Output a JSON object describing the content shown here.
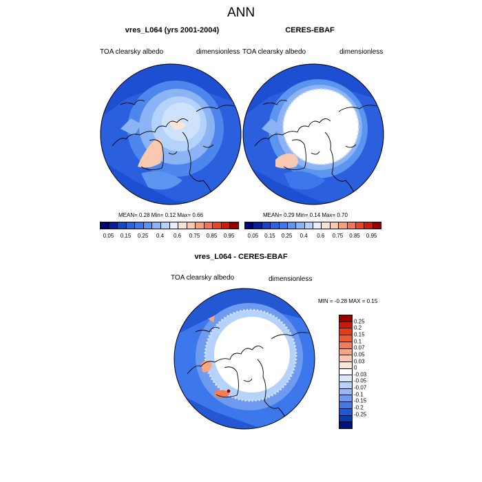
{
  "main_title": "ANN",
  "panel1": {
    "title": "vres_L064 (yrs 2001-2004)",
    "left_label": "TOA clearsky albedo",
    "right_label": "dimensionless",
    "stats": "MEAN=   0.28  Min=   0.12  Max=   0.66"
  },
  "panel2": {
    "title": "CERES-EBAF",
    "left_label": "TOA clearsky albedo",
    "right_label": "dimensionless",
    "stats": "MEAN=   0.29  Min=   0.14  Max=   0.70"
  },
  "panel3": {
    "title": "vres_L064 - CERES-EBAF",
    "left_label": "TOA clearsky albedo",
    "right_label": "dimensionless",
    "minmax": "MIN =  -0.28 MAX =   0.15"
  },
  "abs_colorbar": {
    "colors": [
      "#00006e",
      "#0a1e96",
      "#1446c8",
      "#2864dc",
      "#3c78eb",
      "#5a96f0",
      "#8cb4f5",
      "#b4d2fa",
      "#e6f0ff",
      "#fde6d8",
      "#f8c8b0",
      "#f5a078",
      "#f07850",
      "#e64628",
      "#c81e0a",
      "#960000"
    ],
    "labels": [
      "0.05",
      "0.15",
      "0.25",
      "0.4",
      "0.6",
      "0.75",
      "0.85",
      "0.95"
    ]
  },
  "diff_colorbar": {
    "colors": [
      "#960000",
      "#c8190a",
      "#e63c14",
      "#f05a2d",
      "#f57d55",
      "#f8a582",
      "#fac8af",
      "#fae6d7",
      "#ffffff",
      "#dceaff",
      "#b4d2fa",
      "#96b9f5",
      "#6e9bf0",
      "#4678e6",
      "#2358d2",
      "#0a3caa",
      "#00147d"
    ],
    "labels": [
      "0.25",
      "0.2",
      "0.15",
      "0.1",
      "0.07",
      "0.05",
      "0.03",
      "0",
      "-0.03",
      "-0.05",
      "-0.07",
      "-0.1",
      "-0.15",
      "-0.2",
      "-0.25"
    ]
  }
}
